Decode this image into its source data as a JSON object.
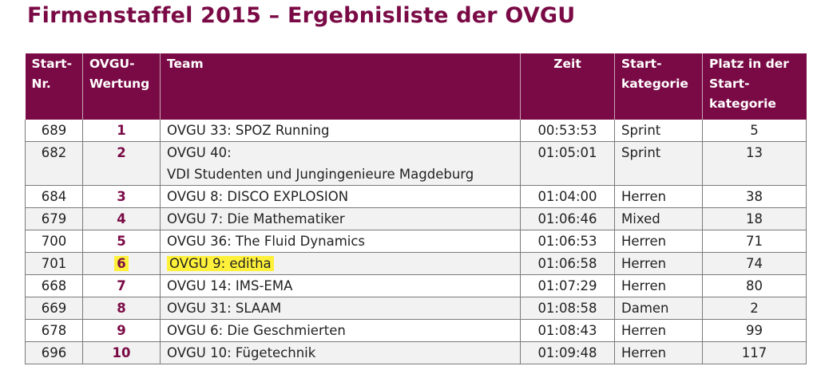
{
  "title": "Firmenstaffel 2015 – Ergebnisliste der OVGU",
  "headers": {
    "start_nr": "Start-Nr.",
    "wertung": "OVGU-Wertung",
    "team": "Team",
    "zeit": "Zeit",
    "kategorie": "Start-kategorie",
    "platz": "Platz in der Start-kategorie"
  },
  "rows": [
    {
      "start_nr": "689",
      "wertung": "1",
      "team": "OVGU 33: SPOZ Running",
      "team2": "",
      "zeit": "00:53:53",
      "kategorie": "Sprint",
      "platz": "5",
      "highlight": false
    },
    {
      "start_nr": "682",
      "wertung": "2",
      "team": "OVGU 40:",
      "team2": "VDI Studenten und Jungingenieure Magdeburg",
      "zeit": "01:05:01",
      "kategorie": "Sprint",
      "platz": "13",
      "highlight": false
    },
    {
      "start_nr": "684",
      "wertung": "3",
      "team": "OVGU 8: DISCO EXPLOSION",
      "team2": "",
      "zeit": "01:04:00",
      "kategorie": "Herren",
      "platz": "38",
      "highlight": false
    },
    {
      "start_nr": "679",
      "wertung": "4",
      "team": "OVGU 7: Die Mathematiker",
      "team2": "",
      "zeit": "01:06:46",
      "kategorie": "Mixed",
      "platz": "18",
      "highlight": false
    },
    {
      "start_nr": "700",
      "wertung": "5",
      "team": "OVGU 36: The Fluid Dynamics",
      "team2": "",
      "zeit": "01:06:53",
      "kategorie": "Herren",
      "platz": "71",
      "highlight": false
    },
    {
      "start_nr": "701",
      "wertung": "6",
      "team": "OVGU 9: editha",
      "team2": "",
      "zeit": "01:06:58",
      "kategorie": "Herren",
      "platz": "74",
      "highlight": true
    },
    {
      "start_nr": "668",
      "wertung": "7",
      "team": "OVGU 14: IMS-EMA",
      "team2": "",
      "zeit": "01:07:29",
      "kategorie": "Herren",
      "platz": "80",
      "highlight": false
    },
    {
      "start_nr": "669",
      "wertung": "8",
      "team": "OVGU 31: SLAAM",
      "team2": "",
      "zeit": "01:08:58",
      "kategorie": "Damen",
      "platz": "2",
      "highlight": false
    },
    {
      "start_nr": "678",
      "wertung": "9",
      "team": "OVGU 6: Die Geschmierten",
      "team2": "",
      "zeit": "01:08:43",
      "kategorie": "Herren",
      "platz": "99",
      "highlight": false
    },
    {
      "start_nr": "696",
      "wertung": "10",
      "team": "OVGU 10: Fügetechnik",
      "team2": "",
      "zeit": "01:09:48",
      "kategorie": "Herren",
      "platz": "117",
      "highlight": false
    }
  ],
  "colors": {
    "brand": "#7a0a45",
    "highlight": "#fff13a"
  }
}
